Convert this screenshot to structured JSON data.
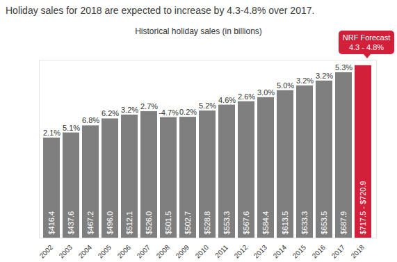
{
  "chart_data": {
    "type": "bar",
    "title": "Holiday sales for 2018 are expected to increase by 4.3-4.8% over 2017.",
    "subtitle": "Historical holiday sales (in billions)",
    "categories": [
      "2002",
      "2003",
      "2004",
      "2005",
      "2006",
      "2007",
      "2008",
      "2009",
      "2010",
      "2011",
      "2012",
      "2013",
      "2014",
      "2015",
      "2016",
      "2017",
      "2018"
    ],
    "values": [
      416.4,
      437.6,
      467.2,
      496.0,
      512.1,
      526.0,
      501.5,
      502.7,
      528.8,
      553.3,
      567.6,
      584.4,
      613.5,
      633.3,
      653.5,
      687.9,
      717.5
    ],
    "value_labels": [
      "$416.4",
      "$437.6",
      "$467.2",
      "$496.0",
      "$512.1",
      "$526.0",
      "$501.5",
      "$502.7",
      "$528.8",
      "$553.3",
      "$567.6",
      "$584.4",
      "$613.5",
      "$633.3",
      "$653.5",
      "$687.9",
      "$717.5 - $720.9"
    ],
    "growth": [
      2.1,
      5.1,
      6.8,
      6.2,
      3.2,
      2.7,
      -4.7,
      0.2,
      5.2,
      4.6,
      2.6,
      3.0,
      5.0,
      3.2,
      3.2,
      5.3,
      null
    ],
    "growth_labels": [
      "2.1%",
      "5.1%",
      "6.8%",
      "6.2%",
      "3.2%",
      "2.7%",
      "-4.7%",
      "0.2%",
      "5.2%",
      "4.6%",
      "2.6%",
      "3.0%",
      "5.0%",
      "3.2%",
      "3.2%",
      "5.3%",
      null
    ],
    "colors": [
      "#7f7f7f",
      "#7f7f7f",
      "#7f7f7f",
      "#7f7f7f",
      "#7f7f7f",
      "#7f7f7f",
      "#7f7f7f",
      "#7f7f7f",
      "#7f7f7f",
      "#7f7f7f",
      "#7f7f7f",
      "#7f7f7f",
      "#7f7f7f",
      "#7f7f7f",
      "#7f7f7f",
      "#7f7f7f",
      "#d2203b"
    ],
    "annotations": [
      "NRF Forecast",
      "4.3 - 4.8%"
    ],
    "ylim": [
      0,
      740
    ],
    "yticks": [],
    "grid": false,
    "data_labels": true,
    "tick_labels": "x"
  }
}
